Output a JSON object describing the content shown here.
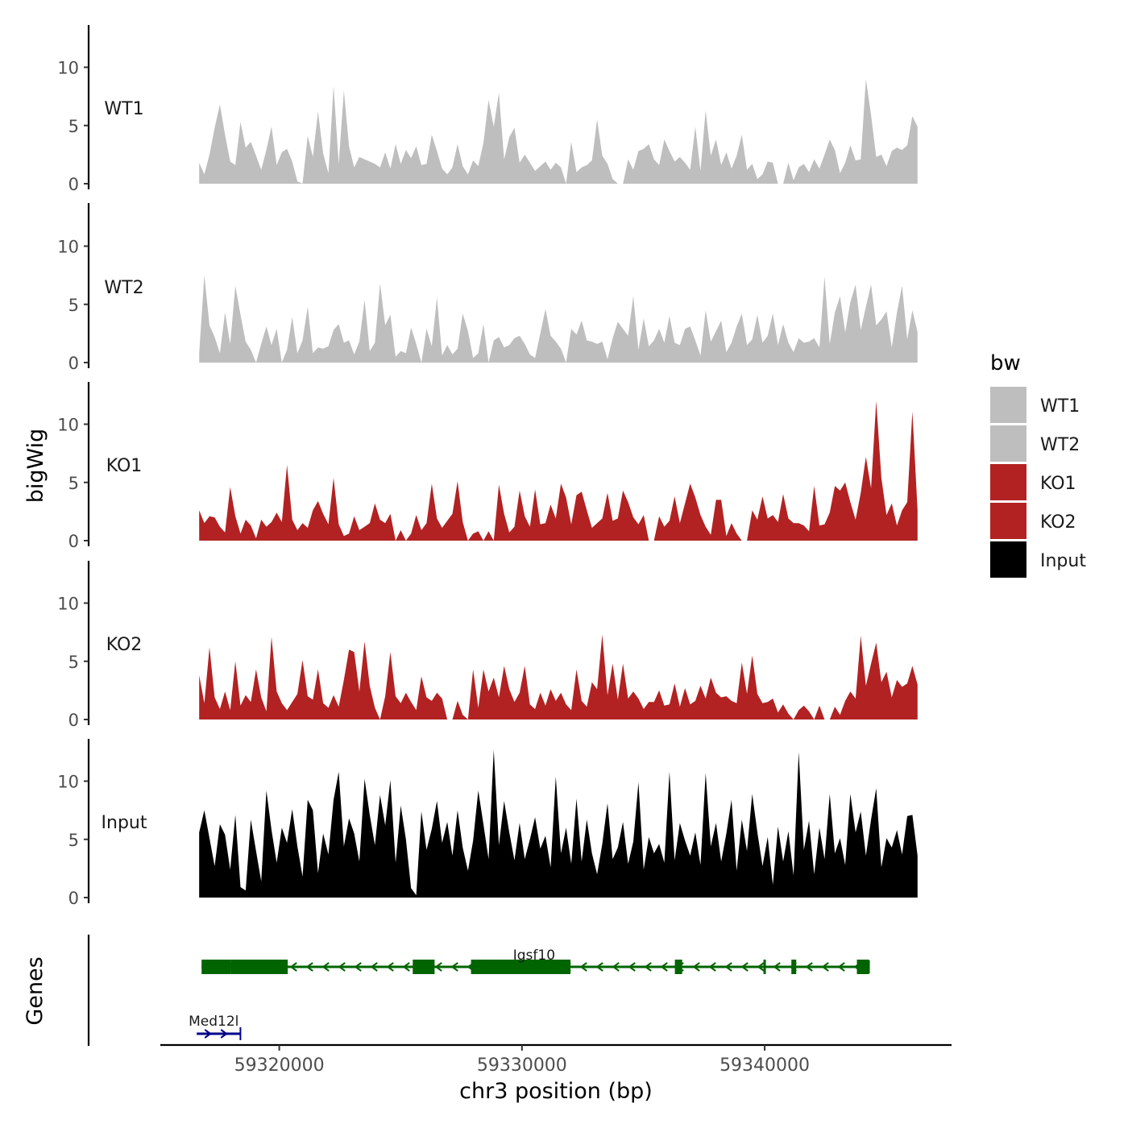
{
  "chart_data": {
    "type": "area",
    "genomic_view": true,
    "xlabel": "chr3 position (bp)",
    "ylabel": "bigWig",
    "genes_label": "Genes",
    "xlim": [
      59315100,
      59347700
    ],
    "ylim": [
      0,
      13.5
    ],
    "y_ticks": [
      0,
      5,
      10
    ],
    "x_ticks": [
      59320000,
      59330000,
      59340000
    ],
    "x_tick_labels": [
      "59320000",
      "59330000",
      "59340000"
    ],
    "legend": {
      "title": "bw",
      "position": "right",
      "entries": [
        {
          "label": "WT1",
          "color": "#bebebe"
        },
        {
          "label": "WT2",
          "color": "#bebebe"
        },
        {
          "label": "KO1",
          "color": "#b22222"
        },
        {
          "label": "KO2",
          "color": "#b22222"
        },
        {
          "label": "Input",
          "color": "#000000"
        }
      ]
    },
    "signal_range": [
      59316700,
      59346300
    ],
    "bin_count": 140,
    "series": [
      {
        "name": "WT1",
        "color": "#bebebe",
        "values": [
          1.8,
          0.8,
          2.5,
          4.8,
          6.8,
          4.2,
          1.9,
          1.6,
          5.3,
          3.1,
          3.6,
          2.4,
          1.2,
          2.9,
          4.9,
          1.6,
          2.7,
          3.0,
          1.9,
          0.2,
          0.0,
          4.1,
          2.3,
          6.2,
          2.6,
          0.9,
          8.4,
          1.7,
          8.0,
          3.2,
          1.4,
          2.3,
          2.1,
          1.9,
          1.7,
          1.4,
          2.7,
          1.3,
          3.4,
          1.7,
          2.9,
          2.2,
          3.2,
          1.6,
          1.7,
          4.2,
          2.8,
          1.3,
          0.8,
          1.4,
          3.4,
          1.5,
          0.8,
          2.0,
          1.5,
          3.5,
          7.2,
          4.9,
          7.8,
          2.1,
          4.0,
          4.8,
          1.8,
          2.5,
          1.8,
          1.1,
          1.5,
          1.9,
          1.2,
          1.8,
          1.4,
          0.0,
          3.6,
          1.0,
          1.4,
          1.6,
          2.0,
          5.5,
          2.4,
          1.7,
          0.4,
          0.0,
          0.0,
          2.1,
          1.2,
          2.8,
          3.0,
          3.4,
          2.1,
          1.6,
          3.8,
          2.8,
          1.9,
          2.3,
          1.8,
          1.2,
          4.9,
          1.1,
          6.3,
          2.4,
          3.8,
          1.6,
          2.7,
          1.3,
          2.4,
          4.2,
          1.2,
          1.7,
          0.4,
          0.8,
          1.9,
          1.8,
          0.0,
          0.0,
          1.8,
          0.3,
          1.4,
          1.7,
          1.0,
          2.1,
          1.3,
          2.5,
          3.8,
          2.9,
          0.9,
          1.8,
          3.3,
          2.0,
          2.1,
          9.0,
          5.9,
          2.3,
          2.5,
          1.5,
          2.8,
          3.1,
          2.9,
          3.3,
          5.8,
          4.9
        ]
      },
      {
        "name": "WT2",
        "color": "#bebebe",
        "values": [
          0.8,
          7.5,
          3.2,
          2.2,
          0.8,
          4.3,
          1.6,
          6.6,
          4.1,
          1.8,
          1.1,
          0.0,
          1.6,
          3.1,
          1.5,
          2.9,
          0.0,
          1.1,
          3.9,
          0.8,
          1.9,
          4.8,
          0.8,
          1.3,
          1.2,
          1.4,
          2.8,
          3.3,
          1.7,
          1.9,
          0.7,
          1.8,
          5.4,
          1.0,
          1.7,
          6.8,
          3.2,
          4.1,
          0.5,
          1.0,
          0.8,
          3.0,
          1.6,
          0.0,
          2.9,
          1.4,
          5.6,
          0.6,
          1.5,
          0.7,
          1.2,
          4.2,
          2.7,
          0.4,
          0.8,
          3.3,
          0.0,
          1.9,
          2.2,
          1.3,
          1.5,
          2.1,
          2.3,
          1.6,
          0.7,
          0.4,
          2.5,
          4.6,
          2.3,
          1.8,
          1.2,
          0.0,
          2.9,
          2.4,
          3.6,
          1.9,
          1.8,
          1.6,
          1.8,
          0.3,
          2.1,
          3.5,
          2.9,
          2.3,
          5.7,
          1.1,
          3.8,
          1.4,
          1.9,
          2.9,
          1.7,
          4.0,
          1.7,
          1.5,
          2.9,
          3.1,
          1.9,
          0.6,
          4.5,
          1.8,
          2.7,
          3.6,
          0.9,
          1.7,
          3.1,
          4.2,
          1.5,
          2.0,
          4.1,
          1.7,
          2.3,
          4.2,
          1.5,
          3.3,
          1.7,
          0.9,
          2.1,
          1.7,
          1.8,
          2.1,
          1.3,
          7.4,
          1.6,
          4.3,
          5.7,
          2.6,
          5.2,
          6.7,
          2.8,
          4.8,
          6.7,
          3.2,
          3.7,
          4.4,
          1.3,
          4.3,
          6.6,
          2.0,
          4.5,
          2.6
        ]
      },
      {
        "name": "KO1",
        "color": "#b22222",
        "values": [
          2.6,
          1.5,
          2.1,
          2.0,
          1.2,
          0.7,
          4.6,
          2.1,
          0.6,
          1.8,
          1.3,
          0.2,
          1.8,
          1.2,
          1.6,
          2.4,
          1.6,
          6.5,
          1.8,
          0.9,
          1.5,
          1.1,
          2.6,
          3.4,
          2.3,
          1.4,
          5.4,
          1.4,
          0.4,
          0.6,
          2.1,
          0.9,
          1.2,
          1.5,
          3.2,
          1.8,
          1.5,
          2.3,
          0.0,
          0.9,
          0.0,
          0.6,
          2.2,
          0.9,
          1.5,
          4.9,
          1.9,
          1.1,
          1.7,
          2.3,
          5.1,
          1.6,
          0.0,
          0.6,
          0.8,
          0.0,
          0.8,
          0.0,
          4.8,
          2.3,
          0.7,
          1.2,
          4.3,
          2.1,
          1.2,
          4.4,
          1.4,
          1.5,
          3.1,
          1.9,
          4.9,
          3.7,
          1.4,
          3.9,
          4.2,
          2.6,
          1.1,
          1.5,
          1.9,
          4.1,
          1.7,
          1.9,
          4.3,
          3.3,
          2.0,
          1.4,
          2.2,
          0.0,
          0.0,
          2.1,
          1.2,
          1.7,
          3.8,
          1.5,
          3.2,
          4.9,
          3.7,
          2.2,
          1.2,
          0.5,
          3.5,
          3.5,
          0.4,
          1.5,
          0.6,
          0.0,
          0.0,
          2.6,
          1.8,
          3.8,
          1.9,
          2.2,
          1.6,
          4.0,
          1.9,
          1.5,
          1.5,
          1.3,
          0.8,
          4.7,
          1.3,
          1.4,
          2.4,
          4.7,
          4.3,
          5.0,
          3.3,
          1.8,
          4.1,
          7.2,
          4.5,
          12.0,
          5.4,
          2.2,
          3.2,
          1.3,
          2.6,
          3.3,
          11.1,
          2.6
        ]
      },
      {
        "name": "KO2",
        "color": "#b22222",
        "values": [
          3.8,
          1.4,
          6.2,
          1.9,
          0.9,
          2.4,
          0.8,
          5.0,
          1.2,
          2.1,
          1.5,
          4.3,
          1.9,
          0.7,
          7.1,
          2.4,
          1.4,
          0.8,
          1.5,
          2.2,
          5.1,
          2.0,
          1.7,
          4.3,
          1.4,
          1.0,
          2.1,
          1.1,
          3.4,
          6.0,
          5.8,
          2.4,
          6.7,
          2.9,
          1.0,
          0.0,
          2.0,
          5.8,
          2.0,
          1.4,
          2.3,
          1.5,
          0.8,
          3.7,
          1.9,
          1.6,
          2.3,
          1.8,
          0.0,
          0.0,
          1.6,
          0.4,
          0.0,
          4.3,
          1.0,
          4.3,
          2.4,
          3.6,
          1.9,
          4.6,
          2.6,
          1.5,
          2.3,
          4.6,
          1.3,
          0.9,
          2.3,
          1.2,
          2.6,
          1.6,
          2.3,
          1.3,
          0.8,
          4.3,
          1.6,
          1.1,
          3.2,
          2.6,
          7.3,
          2.1,
          4.8,
          1.7,
          4.8,
          1.8,
          2.4,
          1.8,
          0.9,
          1.5,
          1.5,
          2.5,
          1.2,
          1.3,
          3.1,
          1.1,
          2.7,
          1.3,
          1.6,
          2.9,
          1.8,
          3.6,
          2.3,
          1.9,
          2.0,
          1.6,
          1.4,
          4.9,
          2.2,
          5.5,
          2.2,
          1.4,
          1.5,
          1.8,
          0.6,
          1.3,
          0.5,
          0.0,
          0.8,
          1.2,
          0.7,
          0.0,
          1.2,
          0.0,
          0.0,
          1.1,
          0.4,
          1.6,
          2.4,
          1.8,
          7.2,
          2.9,
          4.8,
          6.6,
          3.2,
          4.1,
          1.9,
          3.4,
          2.8,
          3.1,
          4.6,
          3.0
        ]
      },
      {
        "name": "Input",
        "color": "#000000",
        "values": [
          5.6,
          7.5,
          5.1,
          2.7,
          6.3,
          5.4,
          2.4,
          7.1,
          0.9,
          0.6,
          6.7,
          4.0,
          1.4,
          9.2,
          5.8,
          3.0,
          6.0,
          4.7,
          7.6,
          4.4,
          1.8,
          8.4,
          7.5,
          2.1,
          5.5,
          3.7,
          8.4,
          10.8,
          4.4,
          6.8,
          5.5,
          3.1,
          10.2,
          7.1,
          4.5,
          8.8,
          6.2,
          10.1,
          3.0,
          7.9,
          5.0,
          0.8,
          0.2,
          7.4,
          4.1,
          5.9,
          8.3,
          4.7,
          6.5,
          3.6,
          7.5,
          4.3,
          2.3,
          4.9,
          9.2,
          6.3,
          3.3,
          12.7,
          4.5,
          8.3,
          5.6,
          3.2,
          6.4,
          3.3,
          5.0,
          6.9,
          4.2,
          5.3,
          2.6,
          10.4,
          3.8,
          6.0,
          2.9,
          8.5,
          3.1,
          6.7,
          3.8,
          2.0,
          4.6,
          8.1,
          3.3,
          4.3,
          6.5,
          2.9,
          4.8,
          9.9,
          2.4,
          5.2,
          3.8,
          4.6,
          3.0,
          10.8,
          3.2,
          6.4,
          4.9,
          3.6,
          5.6,
          2.8,
          10.7,
          4.4,
          6.4,
          3.1,
          5.5,
          8.4,
          2.3,
          6.7,
          4.0,
          8.9,
          5.6,
          2.7,
          5.2,
          1.1,
          6.1,
          3.1,
          5.7,
          1.9,
          12.5,
          4.1,
          6.6,
          2.0,
          6.0,
          3.3,
          8.9,
          3.8,
          5.1,
          2.8,
          8.9,
          5.6,
          7.4,
          3.6,
          6.7,
          9.4,
          2.6,
          5.1,
          4.3,
          5.8,
          3.7,
          7.0,
          7.1,
          3.6
        ]
      }
    ],
    "genes": [
      {
        "name": "Igsf10",
        "strand": "-",
        "start": 59316800,
        "end": 59344300,
        "color": "#006400",
        "exons": [
          [
            59316800,
            59318000
          ],
          [
            59318000,
            59320350
          ],
          [
            59325500,
            59326400
          ],
          [
            59327900,
            59332000
          ],
          [
            59336300,
            59336600
          ],
          [
            59339950,
            59340000
          ],
          [
            59341100,
            59341300
          ],
          [
            59343800,
            59344300
          ]
        ]
      },
      {
        "name": "Med12l",
        "strand": "+",
        "start": 59316600,
        "end": 59318400,
        "color": "#00008b",
        "exons": []
      }
    ]
  }
}
